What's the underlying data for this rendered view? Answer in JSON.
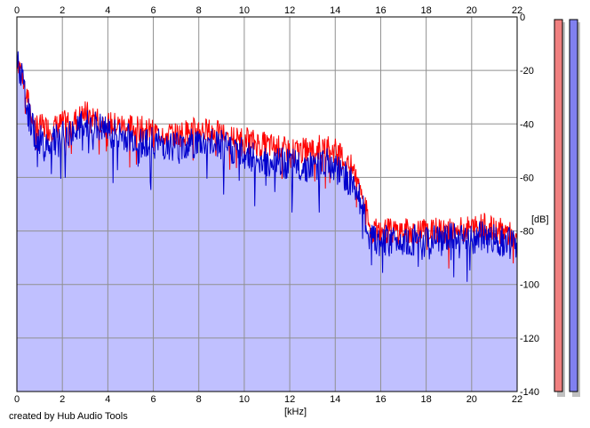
{
  "chart_data": {
    "type": "area",
    "xlabel": "[kHz]",
    "ylabel": "[dB]",
    "xlim": [
      0,
      22
    ],
    "ylim": [
      -140,
      0
    ],
    "x_ticks": [
      "0",
      "2",
      "4",
      "6",
      "8",
      "10",
      "12",
      "14",
      "16",
      "18",
      "20",
      "22"
    ],
    "y_ticks": [
      "0",
      "-20",
      "-40",
      "-60",
      "-80",
      "-100",
      "-120",
      "-140"
    ],
    "grid": true,
    "series": [
      {
        "color": "#ff0000",
        "x": [
          0,
          0.2,
          0.5,
          0.8,
          1.0,
          1.5,
          2.0,
          2.5,
          3.0,
          3.5,
          4.0,
          5.0,
          6.0,
          7.0,
          8.0,
          9.0,
          10.0,
          11.0,
          12.0,
          13.0,
          13.5,
          14.0,
          14.5,
          15.0,
          15.3,
          15.5,
          16.0,
          17.0,
          18.0,
          19.0,
          20.0,
          20.5,
          21.0,
          21.5,
          22.0
        ],
        "values": [
          -15,
          -20,
          -32,
          -40,
          -41,
          -42,
          -40,
          -39,
          -36,
          -38,
          -40,
          -41,
          -43,
          -44,
          -42,
          -44,
          -46,
          -48,
          -50,
          -50,
          -48,
          -50,
          -54,
          -60,
          -70,
          -79,
          -80,
          -80,
          -80,
          -80,
          -79,
          -78,
          -80,
          -80,
          -84
        ]
      },
      {
        "color": "#0000cc",
        "x": [
          0,
          0.2,
          0.5,
          0.8,
          1.0,
          1.5,
          2.0,
          2.5,
          3.0,
          3.5,
          4.0,
          5.0,
          6.0,
          7.0,
          8.0,
          9.0,
          10.0,
          11.0,
          12.0,
          13.0,
          13.5,
          14.0,
          14.5,
          15.0,
          15.3,
          15.5,
          16.0,
          17.0,
          18.0,
          19.0,
          20.0,
          20.5,
          21.0,
          21.5,
          22.0
        ],
        "values": [
          -17,
          -22,
          -36,
          -44,
          -46,
          -47,
          -45,
          -43,
          -40,
          -41,
          -43,
          -45,
          -47,
          -48,
          -47,
          -48,
          -51,
          -54,
          -55,
          -56,
          -54,
          -57,
          -60,
          -65,
          -75,
          -83,
          -84,
          -83,
          -84,
          -83,
          -83,
          -82,
          -83,
          -84,
          -86
        ]
      }
    ],
    "fill_color": "#c0c0ff",
    "meter_colors": [
      "#f08080",
      "#8080f0"
    ]
  },
  "credit": "created by Hub Audio Tools"
}
